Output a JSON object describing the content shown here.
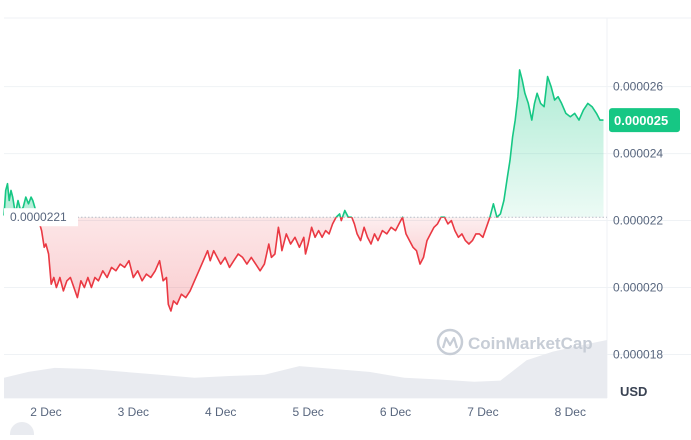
{
  "chart_data": {
    "type": "area",
    "baseline": 2.21e-05,
    "baseline_label": "0.0000221",
    "current_price_label": "0.000025",
    "y_ticks": [
      {
        "value": 2.6e-05,
        "label": "0.000026"
      },
      {
        "value": 2.4e-05,
        "label": "0.000024"
      },
      {
        "value": 2.2e-05,
        "label": "0.000022"
      },
      {
        "value": 2e-05,
        "label": "0.000020"
      },
      {
        "value": 1.8e-05,
        "label": "0.000018"
      }
    ],
    "y_range": [
      1.67e-05,
      2.805e-05
    ],
    "x_range": [
      1.52,
      8.42
    ],
    "x_ticks": [
      {
        "value": 2,
        "label": "2 Dec"
      },
      {
        "value": 3,
        "label": "3 Dec"
      },
      {
        "value": 4,
        "label": "4 Dec"
      },
      {
        "value": 5,
        "label": "5 Dec"
      },
      {
        "value": 6,
        "label": "6 Dec"
      },
      {
        "value": 7,
        "label": "7 Dec"
      },
      {
        "value": 8,
        "label": "8 Dec"
      }
    ],
    "currency_label": "USD",
    "watermark": "CoinMarketCap",
    "grid": true,
    "colors": {
      "up": "#16c784",
      "down": "#ea3943",
      "up_fill": "#d9f6ea",
      "down_fill": "#fbdcdd",
      "badge_up": "#16c784",
      "badge_text": "#ffffff",
      "grid": "#eff2f5",
      "axis_text": "#58667e",
      "volume": "#e9ebf0",
      "baseline_line": "#b8bec9",
      "baseline_badge_bg": "#ffffff",
      "baseline_text": "#58667e"
    },
    "series": [
      {
        "values": [
          [
            1.52,
            2.215e-05
          ],
          [
            1.54,
            2.29e-05
          ],
          [
            1.56,
            2.31e-05
          ],
          [
            1.58,
            2.26e-05
          ],
          [
            1.6,
            2.29e-05
          ],
          [
            1.62,
            2.27e-05
          ],
          [
            1.65,
            2.22e-05
          ],
          [
            1.68,
            2.26e-05
          ],
          [
            1.71,
            2.23e-05
          ],
          [
            1.74,
            2.24e-05
          ],
          [
            1.77,
            2.27e-05
          ],
          [
            1.8,
            2.25e-05
          ],
          [
            1.83,
            2.27e-05
          ],
          [
            1.85,
            2.26e-05
          ],
          [
            1.95,
            2.17e-05
          ],
          [
            1.98,
            2.12e-05
          ],
          [
            2.0,
            2.13e-05
          ],
          [
            2.03,
            2.1e-05
          ],
          [
            2.06,
            2.01e-05
          ],
          [
            2.09,
            2.03e-05
          ],
          [
            2.12,
            2e-05
          ],
          [
            2.16,
            2.03e-05
          ],
          [
            2.2,
            1.99e-05
          ],
          [
            2.24,
            2.02e-05
          ],
          [
            2.28,
            2.03e-05
          ],
          [
            2.32,
            2e-05
          ],
          [
            2.36,
            1.97e-05
          ],
          [
            2.4,
            2.02e-05
          ],
          [
            2.44,
            2e-05
          ],
          [
            2.48,
            2.03e-05
          ],
          [
            2.52,
            2e-05
          ],
          [
            2.56,
            2.03e-05
          ],
          [
            2.6,
            2.02e-05
          ],
          [
            2.65,
            2.05e-05
          ],
          [
            2.7,
            2.03e-05
          ],
          [
            2.75,
            2.06e-05
          ],
          [
            2.8,
            2.05e-05
          ],
          [
            2.85,
            2.07e-05
          ],
          [
            2.9,
            2.06e-05
          ],
          [
            2.95,
            2.08e-05
          ],
          [
            3.0,
            2.03e-05
          ],
          [
            3.05,
            2.05e-05
          ],
          [
            3.1,
            2.02e-05
          ],
          [
            3.15,
            2.04e-05
          ],
          [
            3.2,
            2.03e-05
          ],
          [
            3.25,
            2.05e-05
          ],
          [
            3.3,
            2.08e-05
          ],
          [
            3.34,
            2.02e-05
          ],
          [
            3.38,
            2.03e-05
          ],
          [
            3.4,
            1.95e-05
          ],
          [
            3.43,
            1.93e-05
          ],
          [
            3.46,
            1.96e-05
          ],
          [
            3.5,
            1.95e-05
          ],
          [
            3.55,
            1.98e-05
          ],
          [
            3.6,
            1.97e-05
          ],
          [
            3.65,
            1.99e-05
          ],
          [
            3.7,
            2.02e-05
          ],
          [
            3.75,
            2.05e-05
          ],
          [
            3.8,
            2.08e-05
          ],
          [
            3.85,
            2.11e-05
          ],
          [
            3.88,
            2.08e-05
          ],
          [
            3.92,
            2.11e-05
          ],
          [
            3.96,
            2.09e-05
          ],
          [
            4.0,
            2.07e-05
          ],
          [
            4.05,
            2.09e-05
          ],
          [
            4.1,
            2.06e-05
          ],
          [
            4.15,
            2.08e-05
          ],
          [
            4.2,
            2.1e-05
          ],
          [
            4.25,
            2.09e-05
          ],
          [
            4.3,
            2.07e-05
          ],
          [
            4.35,
            2.09e-05
          ],
          [
            4.4,
            2.07e-05
          ],
          [
            4.45,
            2.05e-05
          ],
          [
            4.5,
            2.07e-05
          ],
          [
            4.55,
            2.13e-05
          ],
          [
            4.58,
            2.09e-05
          ],
          [
            4.62,
            2.1e-05
          ],
          [
            4.66,
            2.18e-05
          ],
          [
            4.68,
            2.15e-05
          ],
          [
            4.7,
            2.11e-05
          ],
          [
            4.75,
            2.16e-05
          ],
          [
            4.8,
            2.13e-05
          ],
          [
            4.85,
            2.15e-05
          ],
          [
            4.9,
            2.12e-05
          ],
          [
            4.95,
            2.15e-05
          ],
          [
            4.97,
            2.1e-05
          ],
          [
            5.0,
            2.13e-05
          ],
          [
            5.04,
            2.18e-05
          ],
          [
            5.08,
            2.15e-05
          ],
          [
            5.12,
            2.17e-05
          ],
          [
            5.16,
            2.15e-05
          ],
          [
            5.2,
            2.17e-05
          ],
          [
            5.24,
            2.16e-05
          ],
          [
            5.28,
            2.19e-05
          ],
          [
            5.32,
            2.21e-05
          ]
        ]
      },
      {
        "values": [
          [
            5.32,
            2.21e-05
          ],
          [
            5.36,
            2.22e-05
          ],
          [
            5.38,
            2.2e-05
          ],
          [
            5.42,
            2.23e-05
          ],
          [
            5.46,
            2.21e-05
          ],
          [
            5.5,
            2.21e-05
          ]
        ]
      },
      {
        "values": [
          [
            5.5,
            2.21e-05
          ],
          [
            5.53,
            2.19e-05
          ],
          [
            5.56,
            2.16e-05
          ],
          [
            5.6,
            2.14e-05
          ],
          [
            5.64,
            2.18e-05
          ],
          [
            5.68,
            2.15e-05
          ],
          [
            5.72,
            2.13e-05
          ],
          [
            5.76,
            2.16e-05
          ],
          [
            5.8,
            2.14e-05
          ],
          [
            5.85,
            2.17e-05
          ],
          [
            5.9,
            2.16e-05
          ],
          [
            5.95,
            2.18e-05
          ],
          [
            6.0,
            2.17e-05
          ],
          [
            6.04,
            2.19e-05
          ],
          [
            6.08,
            2.21e-05
          ],
          [
            6.12,
            2.16e-05
          ],
          [
            6.16,
            2.14e-05
          ],
          [
            6.2,
            2.12e-05
          ],
          [
            6.24,
            2.11e-05
          ],
          [
            6.28,
            2.07e-05
          ],
          [
            6.32,
            2.09e-05
          ],
          [
            6.36,
            2.14e-05
          ],
          [
            6.4,
            2.16e-05
          ],
          [
            6.44,
            2.18e-05
          ],
          [
            6.48,
            2.19e-05
          ],
          [
            6.52,
            2.21e-05
          ],
          [
            6.56,
            2.21e-05
          ],
          [
            6.6,
            2.19e-05
          ],
          [
            6.64,
            2.2e-05
          ],
          [
            6.68,
            2.17e-05
          ],
          [
            6.72,
            2.15e-05
          ],
          [
            6.76,
            2.16e-05
          ],
          [
            6.8,
            2.14e-05
          ],
          [
            6.84,
            2.13e-05
          ],
          [
            6.88,
            2.14e-05
          ],
          [
            6.92,
            2.16e-05
          ],
          [
            6.96,
            2.16e-05
          ],
          [
            7.0,
            2.15e-05
          ],
          [
            7.04,
            2.18e-05
          ],
          [
            7.08,
            2.21e-05
          ]
        ]
      },
      {
        "values": [
          [
            7.08,
            2.21e-05
          ],
          [
            7.12,
            2.25e-05
          ],
          [
            7.16,
            2.21e-05
          ],
          [
            7.2,
            2.22e-05
          ],
          [
            7.24,
            2.26e-05
          ],
          [
            7.28,
            2.33e-05
          ],
          [
            7.31,
            2.38e-05
          ],
          [
            7.34,
            2.45e-05
          ],
          [
            7.37,
            2.5e-05
          ],
          [
            7.4,
            2.57e-05
          ],
          [
            7.42,
            2.65e-05
          ],
          [
            7.45,
            2.62e-05
          ],
          [
            7.48,
            2.58e-05
          ],
          [
            7.52,
            2.55e-05
          ],
          [
            7.56,
            2.5e-05
          ],
          [
            7.59,
            2.55e-05
          ],
          [
            7.62,
            2.58e-05
          ],
          [
            7.66,
            2.55e-05
          ],
          [
            7.7,
            2.54e-05
          ],
          [
            7.74,
            2.63e-05
          ],
          [
            7.78,
            2.6e-05
          ],
          [
            7.82,
            2.56e-05
          ],
          [
            7.86,
            2.57e-05
          ],
          [
            7.9,
            2.55e-05
          ],
          [
            7.95,
            2.52e-05
          ],
          [
            8.0,
            2.51e-05
          ],
          [
            8.05,
            2.52e-05
          ],
          [
            8.1,
            2.5e-05
          ],
          [
            8.15,
            2.53e-05
          ],
          [
            8.2,
            2.55e-05
          ],
          [
            8.25,
            2.54e-05
          ],
          [
            8.3,
            2.52e-05
          ],
          [
            8.34,
            2.5e-05
          ],
          [
            8.38,
            2.5e-05
          ]
        ]
      }
    ],
    "volume": [
      [
        1.52,
        0.35
      ],
      [
        1.8,
        0.45
      ],
      [
        2.1,
        0.52
      ],
      [
        2.5,
        0.5
      ],
      [
        2.9,
        0.45
      ],
      [
        3.3,
        0.4
      ],
      [
        3.7,
        0.35
      ],
      [
        4.1,
        0.38
      ],
      [
        4.5,
        0.4
      ],
      [
        4.9,
        0.55
      ],
      [
        5.3,
        0.5
      ],
      [
        5.7,
        0.45
      ],
      [
        6.1,
        0.35
      ],
      [
        6.5,
        0.32
      ],
      [
        6.9,
        0.28
      ],
      [
        7.2,
        0.3
      ],
      [
        7.5,
        0.65
      ],
      [
        7.8,
        0.8
      ],
      [
        8.1,
        0.9
      ],
      [
        8.42,
        1.0
      ]
    ]
  }
}
